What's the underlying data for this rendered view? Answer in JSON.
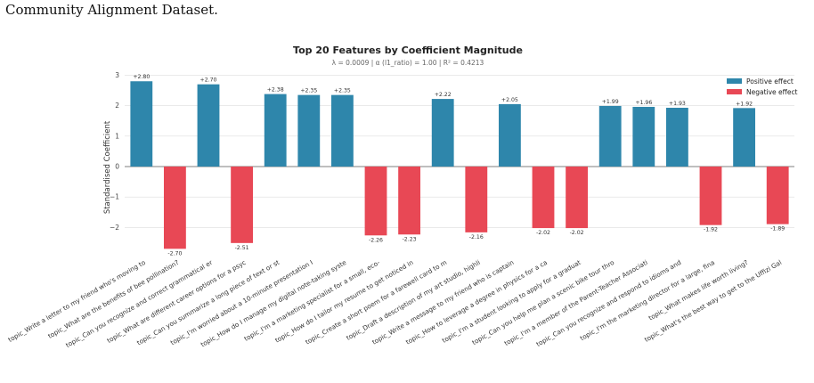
{
  "caption": "Community Alignment Dataset.",
  "chart_data": {
    "type": "bar",
    "title": "Top 20 Features by Coefficient Magnitude",
    "subtitle": "λ = 0.0009   |   α (l1_ratio) = 1.00   |   R² = 0.4213",
    "ylabel": "Standardised Coefficient",
    "ylim": [
      -3,
      3
    ],
    "yticks": [
      3,
      2,
      1,
      0,
      -1,
      -2
    ],
    "ytick_labels": [
      "3",
      "2",
      "1",
      "0",
      "−1",
      "−2"
    ],
    "grid": true,
    "legend_position": "top-right",
    "legend": [
      {
        "label": "Positive effect",
        "color": "#2e86ab"
      },
      {
        "label": "Negative effect",
        "color": "#e84855"
      }
    ],
    "colors": {
      "positive": "#2e86ab",
      "negative": "#e84855"
    },
    "categories": [
      "topic_Write a letter to my friend who's moving to",
      "topic_What are the benefits of bee pollination?",
      "topic_Can you recognize and correct grammatical er",
      "topic_What are different career options for a psyc",
      "topic_Can you summarize a long piece of text or st",
      "topic_I'm worried about a 10-minute presentation I",
      "topic_How do I manage my digital note-taking syste",
      "topic_I'm a marketing specialist for a small, eco-",
      "topic_How do I tailor my resume to get noticed in",
      "topic_Create a short poem for a farewell card to m",
      "topic_Draft a description of my art studio, highli",
      "topic_Write a message to my friend who is captain",
      "topic_How to leverage a degree in physics for a ca",
      "topic_I'm a student looking to apply for a graduat",
      "topic_Can you help me plan a scenic bike tour thro",
      "topic_I'm a member of the Parent-Teacher Associati",
      "topic_Can you recognize and respond to idioms and",
      "topic_I'm the marketing director for a large, fina",
      "topic_What makes life worth living?",
      "topic_What's the best way to get to the Uffizi Gal"
    ],
    "values": [
      2.8,
      -2.7,
      2.7,
      -2.51,
      2.38,
      2.35,
      2.35,
      -2.26,
      -2.23,
      2.22,
      -2.16,
      2.05,
      -2.02,
      -2.02,
      1.99,
      1.96,
      1.93,
      -1.92,
      1.92,
      -1.89
    ],
    "value_labels": [
      "+2.80",
      "-2.70",
      "+2.70",
      "-2.51",
      "+2.38",
      "+2.35",
      "+2.35",
      "-2.26",
      "-2.23",
      "+2.22",
      "-2.16",
      "+2.05",
      "-2.02",
      "-2.02",
      "+1.99",
      "+1.96",
      "+1.93",
      "-1.92",
      "+1.92",
      "-1.89"
    ]
  }
}
